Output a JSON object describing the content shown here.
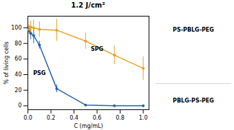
{
  "chart_data": {
    "type": "line",
    "title": "1.2 J/cm²",
    "xlabel": "C (mg/mL)",
    "ylabel": "% of living cells",
    "x": [
      0.01,
      0.025,
      0.05,
      0.1,
      0.25,
      0.5,
      0.75,
      1.0
    ],
    "series": [
      {
        "color": "#2060b0",
        "marker": "circle",
        "line_style": "solid",
        "values": [
          97,
          93,
          90,
          78,
          22,
          1,
          0,
          0
        ],
        "yerr": [
          5,
          8,
          10,
          5,
          5,
          1,
          1,
          1
        ]
      },
      {
        "color": "#e8a020",
        "marker": "circle",
        "line_style": "solid",
        "values": [
          98,
          101,
          100,
          98,
          97,
          83,
          65,
          48
        ],
        "yerr": [
          6,
          8,
          10,
          10,
          14,
          10,
          12,
          15
        ]
      }
    ],
    "xlim": [
      0,
      1.05
    ],
    "ylim": [
      -5,
      115
    ],
    "xticks": [
      {
        "value": 0,
        "label": "0.0"
      },
      0.2,
      0.4,
      0.6,
      0.8,
      {
        "value": 1,
        "label": "1.0"
      }
    ],
    "yticks": [
      0,
      20,
      40,
      60,
      80,
      100
    ],
    "annotations": [
      {
        "text": "PSG",
        "x": 0.1,
        "y": 42
      },
      {
        "text": "SPG",
        "x": 0.6,
        "y": 73
      },
      {
        "text": "PS-PBLG-PEG"
      },
      {
        "text": "PBLG-PS-PEG"
      }
    ]
  }
}
